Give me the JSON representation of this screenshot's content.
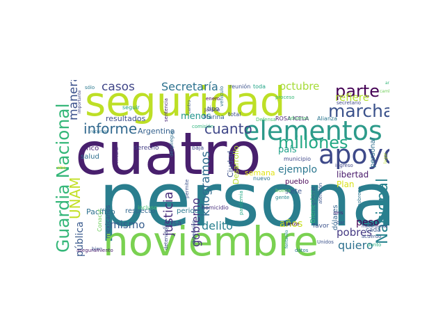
{
  "word_cloud": {
    "words": [
      {
        "text": "persona",
        "color": "#2a7e8e"
      },
      {
        "text": "cuatro",
        "color": "#481f6d"
      },
      {
        "text": "noviembre",
        "color": "#7ad151"
      },
      {
        "text": "seguridad",
        "color": "#bddf26"
      },
      {
        "text": "elementos",
        "color": "#2c9a8a"
      },
      {
        "text": "apoyo",
        "color": "#3e4a89"
      },
      {
        "text": "millones",
        "color": "#22a884"
      },
      {
        "text": "Guardia Nacional",
        "color": "#35b779"
      },
      {
        "text": "marcha",
        "color": "#3b528b"
      },
      {
        "text": "parte",
        "color": "#440154"
      },
      {
        "text": "informe",
        "color": "#31688e"
      },
      {
        "text": "cuanto",
        "color": "#3f4788"
      },
      {
        "text": "Nacional",
        "color": "#26828e"
      },
      {
        "text": "Secretaría",
        "color": "#2c718e"
      },
      {
        "text": "UNAM",
        "color": "#c2df23"
      },
      {
        "text": "justicia",
        "color": "#472d7b"
      },
      {
        "text": "kilogramos",
        "color": "#2f6c8e"
      },
      {
        "text": "octubre",
        "color": "#a5db36"
      },
      {
        "text": "refiere",
        "color": "#b2dd2d"
      },
      {
        "text": "delito",
        "color": "#277f8e"
      },
      {
        "text": "quiero",
        "color": "#2d708e"
      },
      {
        "text": "pobres",
        "color": "#443983"
      },
      {
        "text": "mismo",
        "color": "#365d8d"
      },
      {
        "text": "casos",
        "color": "#404688"
      },
      {
        "text": "manera",
        "color": "#3b518b"
      },
      {
        "text": "gobierno",
        "color": "#46327e"
      },
      {
        "text": "pública",
        "color": "#38598c"
      },
      {
        "text": "menos",
        "color": "#20938c"
      },
      {
        "text": "país",
        "color": "#1fa188"
      },
      {
        "text": "ejemplo",
        "color": "#2a768e"
      },
      {
        "text": "peso",
        "color": "#440154"
      },
      {
        "text": "años",
        "color": "#c8e020"
      },
      {
        "text": "Argentina",
        "color": "#34608d"
      },
      {
        "text": "Pacífico",
        "color": "#2d708e"
      },
      {
        "text": "libertad",
        "color": "#48196b"
      },
      {
        "text": "semana",
        "color": "#e2e418"
      },
      {
        "text": "Plan",
        "color": "#d8e219"
      },
      {
        "text": "Desarrollo",
        "color": "#b5de2b"
      },
      {
        "text": "resultados",
        "color": "#3d4e8a"
      },
      {
        "text": "personal",
        "color": "#2e6f8e"
      },
      {
        "text": "Bienestar",
        "color": "#2db27d"
      },
      {
        "text": "dólares",
        "color": "#33638d"
      },
      {
        "text": "cosa",
        "color": "#3e4c8a"
      },
      {
        "text": "Ciudad",
        "color": "#3c4f8a"
      },
      {
        "text": "cinco",
        "color": "#482173"
      },
      {
        "text": "salud",
        "color": "#2e6e8e"
      },
      {
        "text": "derecho",
        "color": "#433e85"
      },
      {
        "text": "periodo",
        "color": "#2a788e"
      },
      {
        "text": "respecto",
        "color": "#31678e"
      },
      {
        "text": "siete",
        "color": "#3a548c"
      },
      {
        "text": "pueblo",
        "color": "#440154"
      },
      {
        "text": "municipio",
        "color": "#3f4889"
      },
      {
        "text": "tipo",
        "color": "#3b528b"
      },
      {
        "text": "Marina",
        "color": "#35608d"
      },
      {
        "text": "total",
        "color": "#3c4f8a"
      },
      {
        "text": "ROSA ICELA",
        "color": "#481f70"
      },
      {
        "text": "Alianza",
        "color": "#2a768e"
      },
      {
        "text": "nuevo",
        "color": "#2c718e"
      },
      {
        "text": "favor",
        "color": "#3b528b"
      },
      {
        "text": "cada",
        "color": "#39568c"
      },
      {
        "text": "mexicanos",
        "color": "#3c4f8a"
      },
      {
        "text": "Conacyt",
        "color": "#6ccd5a"
      },
      {
        "text": "incluso",
        "color": "#48c16e"
      },
      {
        "text": "homicidio",
        "color": "#472f7d"
      },
      {
        "text": "baja",
        "color": "#3f4889"
      },
      {
        "text": "seguir",
        "color": "#20a386"
      },
      {
        "text": "sentencia",
        "color": "#482878"
      },
      {
        "text": "vehículo",
        "color": "#2d708e"
      },
      {
        "text": "reunión",
        "color": "#3b528b"
      },
      {
        "text": "toda",
        "color": "#20a486"
      },
      {
        "text": "proceso",
        "color": "#38b977"
      },
      {
        "text": "enero",
        "color": "#440154"
      },
      {
        "text": "Jalisco",
        "color": "#46337e"
      },
      {
        "text": "aduanas",
        "color": "#4ac16d"
      },
      {
        "text": "Defensa",
        "color": "#48c16e"
      },
      {
        "text": "comisión",
        "color": "#2eb37c"
      },
      {
        "text": "secretario",
        "color": "#3e4989"
      },
      {
        "text": "ingreso",
        "color": "#404688"
      },
      {
        "text": "dar",
        "color": "#3b528b"
      },
      {
        "text": "seis",
        "color": "#482475"
      },
      {
        "text": "gente",
        "color": "#24868e"
      },
      {
        "text": "atención",
        "color": "#3a548c"
      },
      {
        "text": "general",
        "color": "#38598c"
      },
      {
        "text": "buena",
        "color": "#5ec962"
      },
      {
        "text": "Unidos",
        "color": "#3b528b"
      },
      {
        "text": "pobreza",
        "color": "#2b748e"
      },
      {
        "text": "punto",
        "color": "#27ad81"
      },
      {
        "text": "acuerdo",
        "color": "#3b528b"
      },
      {
        "text": "fuerza",
        "color": "#440154"
      },
      {
        "text": "datos",
        "color": "#2a788e"
      },
      {
        "text": "bien",
        "color": "#3b528b"
      },
      {
        "text": "detenido",
        "color": "#3e4a89"
      },
      {
        "text": "aseguramiento",
        "color": "#481a6c"
      },
      {
        "text": "importante",
        "color": "#3f4788"
      },
      {
        "text": "sólo",
        "color": "#2a788e"
      },
      {
        "text": "arma",
        "color": "#35b779"
      },
      {
        "text": "cambio",
        "color": "#6ece58"
      },
      {
        "text": "pandemia",
        "color": "#22a884"
      },
      {
        "text": "despliegue",
        "color": "#2d708e"
      },
      {
        "text": "permite",
        "color": "#3b528b"
      },
      {
        "text": "detención",
        "color": "#39558c"
      },
      {
        "text": "fentanilo",
        "color": "#23888e"
      },
      {
        "text": "mecanismos",
        "color": "#414487"
      },
      {
        "text": "recursos",
        "color": "#2c728e"
      },
      {
        "text": "celebrar",
        "color": "#482878"
      },
      {
        "text": "centro",
        "color": "#3b528b"
      },
      {
        "text": "sitio",
        "color": "#fde725"
      },
      {
        "text": "ver",
        "color": "#3b528b"
      },
      {
        "text": "lugar",
        "color": "#bddf26"
      }
    ]
  }
}
